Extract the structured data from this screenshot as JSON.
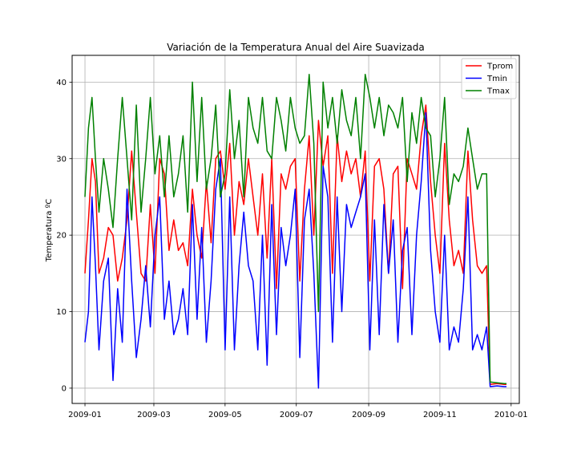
{
  "chart_data": {
    "type": "line",
    "title": "Variación de la Temperatura Anual del Aire Suavizada",
    "xlabel": "",
    "ylabel": "Temperatura ºC",
    "x_ticks": [
      "2009-01",
      "2009-03",
      "2009-05",
      "2009-07",
      "2009-09",
      "2009-11",
      "2010-01"
    ],
    "y_ticks": [
      0,
      10,
      20,
      30,
      40
    ],
    "xlim": [
      "2008-12-21",
      "2010-01-08"
    ],
    "ylim": [
      -2,
      43.5
    ],
    "grid": true,
    "legend_position": "top-right",
    "series": [
      {
        "name": "Tprom",
        "color": "#ff0000",
        "points": [
          [
            "2009-01-01",
            15
          ],
          [
            "2009-01-04",
            22
          ],
          [
            "2009-01-07",
            30
          ],
          [
            "2009-01-10",
            27
          ],
          [
            "2009-01-13",
            15
          ],
          [
            "2009-01-17",
            17
          ],
          [
            "2009-01-21",
            21
          ],
          [
            "2009-01-25",
            20
          ],
          [
            "2009-01-29",
            14
          ],
          [
            "2009-02-02",
            17
          ],
          [
            "2009-02-06",
            22
          ],
          [
            "2009-02-10",
            31
          ],
          [
            "2009-02-14",
            23
          ],
          [
            "2009-02-18",
            15
          ],
          [
            "2009-02-22",
            14
          ],
          [
            "2009-02-26",
            24
          ],
          [
            "2009-03-02",
            15
          ],
          [
            "2009-03-06",
            30
          ],
          [
            "2009-03-10",
            28
          ],
          [
            "2009-03-14",
            18
          ],
          [
            "2009-03-18",
            22
          ],
          [
            "2009-03-22",
            18
          ],
          [
            "2009-03-26",
            19
          ],
          [
            "2009-03-30",
            16
          ],
          [
            "2009-04-03",
            26
          ],
          [
            "2009-04-07",
            20
          ],
          [
            "2009-04-11",
            17
          ],
          [
            "2009-04-15",
            27
          ],
          [
            "2009-04-19",
            19
          ],
          [
            "2009-04-23",
            30
          ],
          [
            "2009-04-27",
            31
          ],
          [
            "2009-05-01",
            26
          ],
          [
            "2009-05-05",
            32
          ],
          [
            "2009-05-09",
            20
          ],
          [
            "2009-05-13",
            27
          ],
          [
            "2009-05-17",
            24
          ],
          [
            "2009-05-21",
            30
          ],
          [
            "2009-05-25",
            25
          ],
          [
            "2009-05-29",
            20
          ],
          [
            "2009-06-02",
            28
          ],
          [
            "2009-06-06",
            17
          ],
          [
            "2009-06-10",
            30
          ],
          [
            "2009-06-14",
            13
          ],
          [
            "2009-06-18",
            28
          ],
          [
            "2009-06-22",
            26
          ],
          [
            "2009-06-26",
            29
          ],
          [
            "2009-06-30",
            30
          ],
          [
            "2009-07-04",
            14
          ],
          [
            "2009-07-08",
            26
          ],
          [
            "2009-07-12",
            33
          ],
          [
            "2009-07-16",
            20
          ],
          [
            "2009-07-20",
            35
          ],
          [
            "2009-07-24",
            29
          ],
          [
            "2009-07-28",
            33
          ],
          [
            "2009-08-01",
            15
          ],
          [
            "2009-08-05",
            33
          ],
          [
            "2009-08-09",
            27
          ],
          [
            "2009-08-13",
            31
          ],
          [
            "2009-08-17",
            28
          ],
          [
            "2009-08-21",
            30
          ],
          [
            "2009-08-25",
            25
          ],
          [
            "2009-08-29",
            31
          ],
          [
            "2009-09-02",
            14
          ],
          [
            "2009-09-06",
            29
          ],
          [
            "2009-09-10",
            30
          ],
          [
            "2009-09-14",
            26
          ],
          [
            "2009-09-18",
            15
          ],
          [
            "2009-09-22",
            28
          ],
          [
            "2009-09-26",
            29
          ],
          [
            "2009-09-30",
            13
          ],
          [
            "2009-10-04",
            30
          ],
          [
            "2009-10-08",
            28
          ],
          [
            "2009-10-12",
            26
          ],
          [
            "2009-10-16",
            33
          ],
          [
            "2009-10-20",
            37
          ],
          [
            "2009-10-24",
            27
          ],
          [
            "2009-10-28",
            20
          ],
          [
            "2009-11-01",
            15
          ],
          [
            "2009-11-05",
            32
          ],
          [
            "2009-11-09",
            22
          ],
          [
            "2009-11-13",
            16
          ],
          [
            "2009-11-17",
            18
          ],
          [
            "2009-11-21",
            15
          ],
          [
            "2009-11-25",
            31
          ],
          [
            "2009-11-29",
            22
          ],
          [
            "2009-12-03",
            16
          ],
          [
            "2009-12-07",
            15
          ],
          [
            "2009-12-11",
            16
          ],
          [
            "2009-12-14",
            0.5
          ],
          [
            "2009-12-20",
            0.6
          ],
          [
            "2009-12-26",
            0.5
          ],
          [
            "2009-12-28",
            0.5
          ]
        ]
      },
      {
        "name": "Tmin",
        "color": "#0000ff",
        "points": [
          [
            "2009-01-01",
            6
          ],
          [
            "2009-01-04",
            10
          ],
          [
            "2009-01-07",
            25
          ],
          [
            "2009-01-10",
            16
          ],
          [
            "2009-01-13",
            5
          ],
          [
            "2009-01-17",
            14
          ],
          [
            "2009-01-21",
            17
          ],
          [
            "2009-01-25",
            1
          ],
          [
            "2009-01-29",
            13
          ],
          [
            "2009-02-02",
            6
          ],
          [
            "2009-02-06",
            26
          ],
          [
            "2009-02-10",
            14
          ],
          [
            "2009-02-14",
            4
          ],
          [
            "2009-02-18",
            9
          ],
          [
            "2009-02-22",
            16
          ],
          [
            "2009-02-26",
            8
          ],
          [
            "2009-03-02",
            20
          ],
          [
            "2009-03-06",
            25
          ],
          [
            "2009-03-10",
            9
          ],
          [
            "2009-03-14",
            14
          ],
          [
            "2009-03-18",
            7
          ],
          [
            "2009-03-22",
            9
          ],
          [
            "2009-03-26",
            13
          ],
          [
            "2009-03-30",
            7
          ],
          [
            "2009-04-03",
            24
          ],
          [
            "2009-04-07",
            9
          ],
          [
            "2009-04-11",
            21
          ],
          [
            "2009-04-15",
            6
          ],
          [
            "2009-04-19",
            14
          ],
          [
            "2009-04-23",
            26
          ],
          [
            "2009-04-27",
            30
          ],
          [
            "2009-05-01",
            5
          ],
          [
            "2009-05-05",
            25
          ],
          [
            "2009-05-09",
            5
          ],
          [
            "2009-05-13",
            16
          ],
          [
            "2009-05-17",
            23
          ],
          [
            "2009-05-21",
            16
          ],
          [
            "2009-05-25",
            14
          ],
          [
            "2009-05-29",
            5
          ],
          [
            "2009-06-02",
            20
          ],
          [
            "2009-06-06",
            3
          ],
          [
            "2009-06-10",
            24
          ],
          [
            "2009-06-14",
            7
          ],
          [
            "2009-06-18",
            21
          ],
          [
            "2009-06-22",
            16
          ],
          [
            "2009-06-26",
            20
          ],
          [
            "2009-06-30",
            26
          ],
          [
            "2009-07-04",
            4
          ],
          [
            "2009-07-08",
            22
          ],
          [
            "2009-07-12",
            26
          ],
          [
            "2009-07-16",
            15
          ],
          [
            "2009-07-20",
            0
          ],
          [
            "2009-07-24",
            29
          ],
          [
            "2009-07-28",
            25
          ],
          [
            "2009-08-01",
            6
          ],
          [
            "2009-08-05",
            25
          ],
          [
            "2009-08-09",
            10
          ],
          [
            "2009-08-13",
            24
          ],
          [
            "2009-08-17",
            21
          ],
          [
            "2009-08-21",
            23
          ],
          [
            "2009-08-25",
            25
          ],
          [
            "2009-08-29",
            28
          ],
          [
            "2009-09-02",
            5
          ],
          [
            "2009-09-06",
            22
          ],
          [
            "2009-09-10",
            7
          ],
          [
            "2009-09-14",
            24
          ],
          [
            "2009-09-18",
            15
          ],
          [
            "2009-09-22",
            22
          ],
          [
            "2009-09-26",
            6
          ],
          [
            "2009-09-30",
            18
          ],
          [
            "2009-10-04",
            21
          ],
          [
            "2009-10-08",
            7
          ],
          [
            "2009-10-12",
            20
          ],
          [
            "2009-10-16",
            27
          ],
          [
            "2009-10-20",
            36
          ],
          [
            "2009-10-24",
            18
          ],
          [
            "2009-10-28",
            10
          ],
          [
            "2009-11-01",
            6
          ],
          [
            "2009-11-05",
            20
          ],
          [
            "2009-11-09",
            5
          ],
          [
            "2009-11-13",
            8
          ],
          [
            "2009-11-17",
            6
          ],
          [
            "2009-11-21",
            13
          ],
          [
            "2009-11-25",
            25
          ],
          [
            "2009-11-29",
            5
          ],
          [
            "2009-12-03",
            7
          ],
          [
            "2009-12-07",
            5
          ],
          [
            "2009-12-11",
            8
          ],
          [
            "2009-12-14",
            0.2
          ],
          [
            "2009-12-20",
            0.3
          ],
          [
            "2009-12-26",
            0.2
          ],
          [
            "2009-12-28",
            0.2
          ]
        ]
      },
      {
        "name": "Tmax",
        "color": "#008000",
        "points": [
          [
            "2009-01-01",
            25
          ],
          [
            "2009-01-04",
            34
          ],
          [
            "2009-01-07",
            38
          ],
          [
            "2009-01-10",
            30
          ],
          [
            "2009-01-13",
            23
          ],
          [
            "2009-01-17",
            30
          ],
          [
            "2009-01-21",
            26
          ],
          [
            "2009-01-25",
            21
          ],
          [
            "2009-01-29",
            30
          ],
          [
            "2009-02-02",
            38
          ],
          [
            "2009-02-06",
            30
          ],
          [
            "2009-02-10",
            22
          ],
          [
            "2009-02-14",
            37
          ],
          [
            "2009-02-18",
            23
          ],
          [
            "2009-02-22",
            30
          ],
          [
            "2009-02-26",
            38
          ],
          [
            "2009-03-02",
            28
          ],
          [
            "2009-03-06",
            33
          ],
          [
            "2009-03-10",
            25
          ],
          [
            "2009-03-14",
            33
          ],
          [
            "2009-03-18",
            25
          ],
          [
            "2009-03-22",
            28
          ],
          [
            "2009-03-26",
            33
          ],
          [
            "2009-03-30",
            23
          ],
          [
            "2009-04-03",
            40
          ],
          [
            "2009-04-07",
            27
          ],
          [
            "2009-04-11",
            38
          ],
          [
            "2009-04-15",
            26
          ],
          [
            "2009-04-19",
            30
          ],
          [
            "2009-04-23",
            37
          ],
          [
            "2009-04-27",
            25
          ],
          [
            "2009-05-01",
            28
          ],
          [
            "2009-05-05",
            39
          ],
          [
            "2009-05-09",
            30
          ],
          [
            "2009-05-13",
            35
          ],
          [
            "2009-05-17",
            25
          ],
          [
            "2009-05-21",
            38
          ],
          [
            "2009-05-25",
            34
          ],
          [
            "2009-05-29",
            32
          ],
          [
            "2009-06-02",
            38
          ],
          [
            "2009-06-06",
            31
          ],
          [
            "2009-06-10",
            30
          ],
          [
            "2009-06-14",
            38
          ],
          [
            "2009-06-18",
            35
          ],
          [
            "2009-06-22",
            31
          ],
          [
            "2009-06-26",
            38
          ],
          [
            "2009-06-30",
            34
          ],
          [
            "2009-07-04",
            32
          ],
          [
            "2009-07-08",
            33
          ],
          [
            "2009-07-12",
            41
          ],
          [
            "2009-07-16",
            32
          ],
          [
            "2009-07-20",
            10
          ],
          [
            "2009-07-24",
            40
          ],
          [
            "2009-07-28",
            34
          ],
          [
            "2009-08-01",
            38
          ],
          [
            "2009-08-05",
            32
          ],
          [
            "2009-08-09",
            39
          ],
          [
            "2009-08-13",
            35
          ],
          [
            "2009-08-17",
            33
          ],
          [
            "2009-08-21",
            38
          ],
          [
            "2009-08-25",
            30
          ],
          [
            "2009-08-29",
            41
          ],
          [
            "2009-09-02",
            38
          ],
          [
            "2009-09-06",
            34
          ],
          [
            "2009-09-10",
            38
          ],
          [
            "2009-09-14",
            33
          ],
          [
            "2009-09-18",
            37
          ],
          [
            "2009-09-22",
            36
          ],
          [
            "2009-09-26",
            34
          ],
          [
            "2009-09-30",
            38
          ],
          [
            "2009-10-04",
            27
          ],
          [
            "2009-10-08",
            36
          ],
          [
            "2009-10-12",
            32
          ],
          [
            "2009-10-16",
            38
          ],
          [
            "2009-10-20",
            34
          ],
          [
            "2009-10-24",
            33
          ],
          [
            "2009-10-28",
            25
          ],
          [
            "2009-11-01",
            30
          ],
          [
            "2009-11-05",
            38
          ],
          [
            "2009-11-09",
            24
          ],
          [
            "2009-11-13",
            28
          ],
          [
            "2009-11-17",
            27
          ],
          [
            "2009-11-21",
            29
          ],
          [
            "2009-11-25",
            34
          ],
          [
            "2009-11-29",
            30
          ],
          [
            "2009-12-03",
            26
          ],
          [
            "2009-12-07",
            28
          ],
          [
            "2009-12-11",
            28
          ],
          [
            "2009-12-14",
            0.8
          ],
          [
            "2009-12-20",
            0.7
          ],
          [
            "2009-12-26",
            0.6
          ],
          [
            "2009-12-28",
            0.6
          ]
        ]
      }
    ]
  }
}
